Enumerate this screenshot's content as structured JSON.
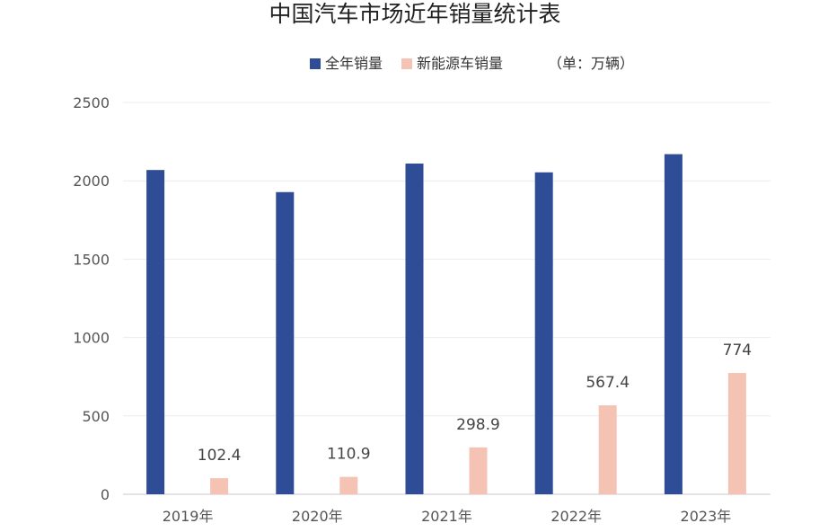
{
  "chart_data": {
    "type": "bar",
    "title": "中国汽车市场近年销量统计表",
    "unit": "（单：万辆）",
    "categories": [
      "2019年",
      "2020年",
      "2021年",
      "2022年",
      "2023年"
    ],
    "series": [
      {
        "name": "全年销量",
        "color": "#2f4c96",
        "values": [
          2069,
          1928,
          2110,
          2054,
          2170
        ],
        "show_labels": false
      },
      {
        "name": "新能源车销量",
        "color": "#f5c3b3",
        "values": [
          102.4,
          110.9,
          298.9,
          567.4,
          774
        ],
        "show_labels": true
      }
    ],
    "ylim": [
      0,
      2500
    ],
    "yticks": [
      0,
      500,
      1000,
      1500,
      2000,
      2500
    ],
    "grid": true,
    "legend_position": "top"
  }
}
